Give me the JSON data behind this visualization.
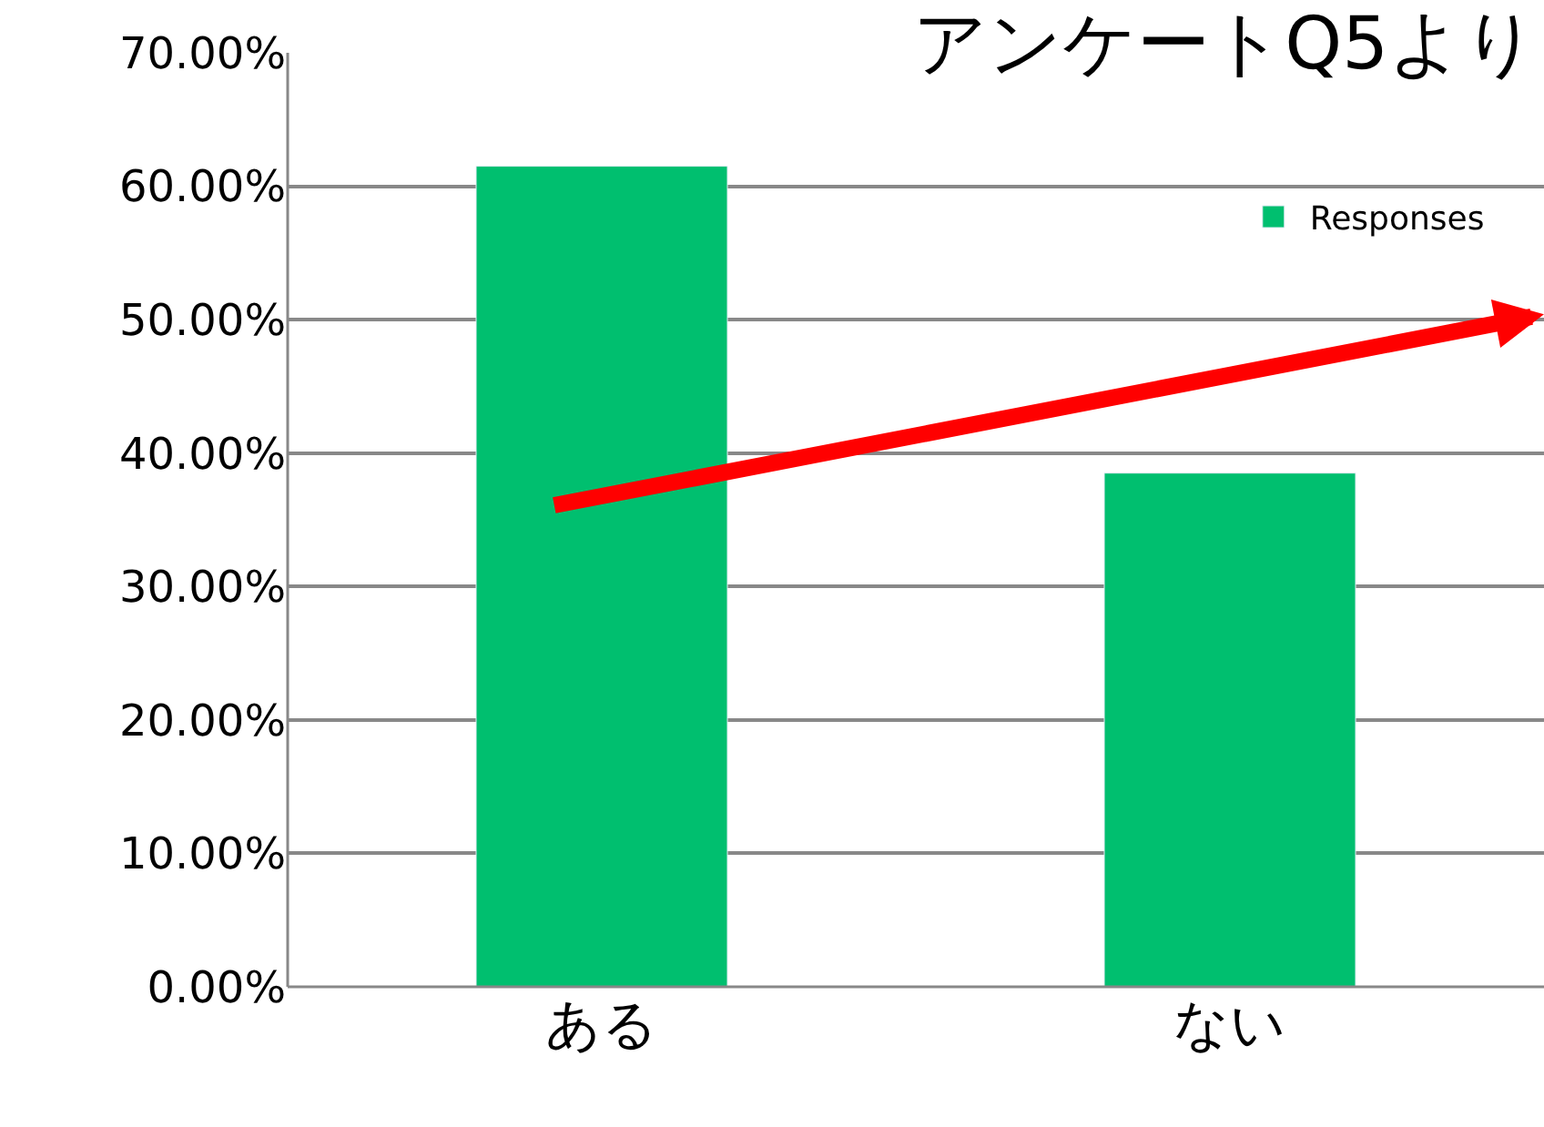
{
  "chart_data": {
    "type": "bar",
    "title": "アンケートQ5より",
    "categories": [
      "ある",
      "ない"
    ],
    "series": [
      {
        "name": "Responses",
        "color": "#00bf6f",
        "values": [
          61.5,
          38.5
        ]
      }
    ],
    "ylim": [
      0,
      70
    ],
    "yticks": [
      {
        "value": 0,
        "label": "0.00%"
      },
      {
        "value": 10,
        "label": "10.00%"
      },
      {
        "value": 20,
        "label": "20.00%"
      },
      {
        "value": 30,
        "label": "30.00%"
      },
      {
        "value": 40,
        "label": "40.00%"
      },
      {
        "value": 50,
        "label": "50.00%"
      },
      {
        "value": 60,
        "label": "60.00%"
      },
      {
        "value": 70,
        "label": "70.00%"
      }
    ],
    "grid": "y",
    "legend": "top right"
  }
}
